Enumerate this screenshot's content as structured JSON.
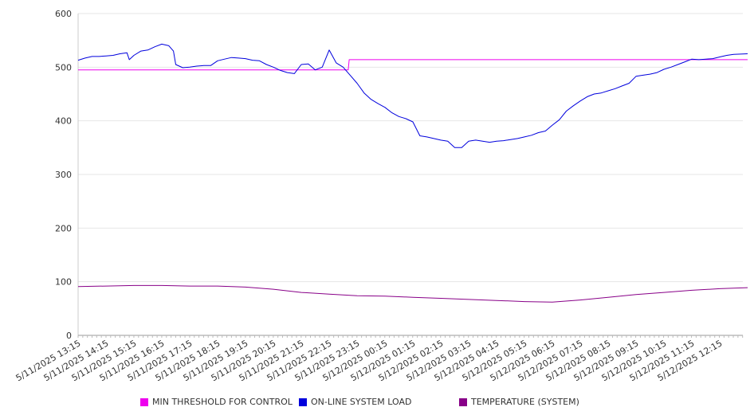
{
  "chart_data": {
    "type": "line",
    "ylim": [
      0,
      600
    ],
    "yticks": [
      0,
      100,
      200,
      300,
      400,
      500,
      600
    ],
    "grid": true,
    "legend_position": "bottom",
    "x_tick_labels": [
      "5/11/2025 13:15",
      "5/11/2025 14:15",
      "5/11/2025 15:15",
      "5/11/2025 16:15",
      "5/11/2025 17:15",
      "5/11/2025 18:15",
      "5/11/2025 19:15",
      "5/11/2025 20:15",
      "5/11/2025 21:15",
      "5/11/2025 22:15",
      "5/11/2025 23:15",
      "5/12/2025 00:15",
      "5/12/2025 01:15",
      "5/12/2025 02:15",
      "5/12/2025 03:15",
      "5/12/2025 04:15",
      "5/12/2025 05:15",
      "5/12/2025 06:15",
      "5/12/2025 07:15",
      "5/12/2025 08:15",
      "5/12/2025 09:15",
      "5/12/2025 10:15",
      "5/12/2025 11:15",
      "5/12/2025 12:15"
    ],
    "series": [
      {
        "name": "MIN THRESHOLD FOR CONTROL",
        "color": "#ee00ee",
        "points": [
          [
            "5/11/2025 13:15",
            495
          ],
          [
            "5/11/2025 22:56",
            495
          ],
          [
            "5/11/2025 22:58",
            514
          ],
          [
            "5/12/2025 13:15",
            514
          ]
        ]
      },
      {
        "name": "ON-LINE SYSTEM LOAD",
        "color": "#0000dd",
        "points": [
          [
            "5/11/2025 13:15",
            513
          ],
          [
            "5/11/2025 13:30",
            517
          ],
          [
            "5/11/2025 13:45",
            520
          ],
          [
            "5/11/2025 14:00",
            520
          ],
          [
            "5/11/2025 14:15",
            521
          ],
          [
            "5/11/2025 14:30",
            522
          ],
          [
            "5/11/2025 14:45",
            525
          ],
          [
            "5/11/2025 15:00",
            527
          ],
          [
            "5/11/2025 15:05",
            514
          ],
          [
            "5/11/2025 15:15",
            522
          ],
          [
            "5/11/2025 15:30",
            530
          ],
          [
            "5/11/2025 15:45",
            532
          ],
          [
            "5/11/2025 16:00",
            538
          ],
          [
            "5/11/2025 16:15",
            543
          ],
          [
            "5/11/2025 16:30",
            540
          ],
          [
            "5/11/2025 16:40",
            530
          ],
          [
            "5/11/2025 16:45",
            505
          ],
          [
            "5/11/2025 17:00",
            499
          ],
          [
            "5/11/2025 17:15",
            500
          ],
          [
            "5/11/2025 17:30",
            502
          ],
          [
            "5/11/2025 17:45",
            503
          ],
          [
            "5/11/2025 18:00",
            503
          ],
          [
            "5/11/2025 18:15",
            512
          ],
          [
            "5/11/2025 18:30",
            515
          ],
          [
            "5/11/2025 18:45",
            518
          ],
          [
            "5/11/2025 19:00",
            517
          ],
          [
            "5/11/2025 19:15",
            516
          ],
          [
            "5/11/2025 19:30",
            513
          ],
          [
            "5/11/2025 19:45",
            512
          ],
          [
            "5/11/2025 20:00",
            505
          ],
          [
            "5/11/2025 20:15",
            500
          ],
          [
            "5/11/2025 20:30",
            494
          ],
          [
            "5/11/2025 20:45",
            490
          ],
          [
            "5/11/2025 21:00",
            488
          ],
          [
            "5/11/2025 21:15",
            505
          ],
          [
            "5/11/2025 21:30",
            506
          ],
          [
            "5/11/2025 21:45",
            495
          ],
          [
            "5/11/2025 22:00",
            500
          ],
          [
            "5/11/2025 22:15",
            532
          ],
          [
            "5/11/2025 22:30",
            508
          ],
          [
            "5/11/2025 22:45",
            500
          ],
          [
            "5/11/2025 23:00",
            485
          ],
          [
            "5/11/2025 23:15",
            470
          ],
          [
            "5/11/2025 23:30",
            452
          ],
          [
            "5/11/2025 23:45",
            440
          ],
          [
            "5/12/2025 00:00",
            432
          ],
          [
            "5/12/2025 00:15",
            425
          ],
          [
            "5/12/2025 00:30",
            415
          ],
          [
            "5/12/2025 00:45",
            408
          ],
          [
            "5/12/2025 01:00",
            404
          ],
          [
            "5/12/2025 01:15",
            398
          ],
          [
            "5/12/2025 01:30",
            372
          ],
          [
            "5/12/2025 01:45",
            370
          ],
          [
            "5/12/2025 02:00",
            367
          ],
          [
            "5/12/2025 02:15",
            364
          ],
          [
            "5/12/2025 02:30",
            362
          ],
          [
            "5/12/2025 02:45",
            350
          ],
          [
            "5/12/2025 03:00",
            350
          ],
          [
            "5/12/2025 03:15",
            362
          ],
          [
            "5/12/2025 03:30",
            364
          ],
          [
            "5/12/2025 03:45",
            362
          ],
          [
            "5/12/2025 04:00",
            360
          ],
          [
            "5/12/2025 04:15",
            362
          ],
          [
            "5/12/2025 04:30",
            363
          ],
          [
            "5/12/2025 04:45",
            365
          ],
          [
            "5/12/2025 05:00",
            367
          ],
          [
            "5/12/2025 05:15",
            370
          ],
          [
            "5/12/2025 05:30",
            373
          ],
          [
            "5/12/2025 05:45",
            378
          ],
          [
            "5/12/2025 06:00",
            381
          ],
          [
            "5/12/2025 06:15",
            392
          ],
          [
            "5/12/2025 06:30",
            402
          ],
          [
            "5/12/2025 06:45",
            418
          ],
          [
            "5/12/2025 07:00",
            428
          ],
          [
            "5/12/2025 07:15",
            437
          ],
          [
            "5/12/2025 07:30",
            445
          ],
          [
            "5/12/2025 07:45",
            450
          ],
          [
            "5/12/2025 08:00",
            452
          ],
          [
            "5/12/2025 08:15",
            456
          ],
          [
            "5/12/2025 08:30",
            460
          ],
          [
            "5/12/2025 08:45",
            465
          ],
          [
            "5/12/2025 09:00",
            470
          ],
          [
            "5/12/2025 09:15",
            483
          ],
          [
            "5/12/2025 09:30",
            485
          ],
          [
            "5/12/2025 09:45",
            487
          ],
          [
            "5/12/2025 10:00",
            490
          ],
          [
            "5/12/2025 10:15",
            496
          ],
          [
            "5/12/2025 10:30",
            500
          ],
          [
            "5/12/2025 10:45",
            505
          ],
          [
            "5/12/2025 11:00",
            510
          ],
          [
            "5/12/2025 11:15",
            515
          ],
          [
            "5/12/2025 11:30",
            514
          ],
          [
            "5/12/2025 11:45",
            515
          ],
          [
            "5/12/2025 12:00",
            516
          ],
          [
            "5/12/2025 12:15",
            519
          ],
          [
            "5/12/2025 12:30",
            522
          ],
          [
            "5/12/2025 12:45",
            524
          ],
          [
            "5/12/2025 13:15",
            525
          ]
        ]
      },
      {
        "name": "TEMPERATURE (SYSTEM)",
        "color": "#880088",
        "points": [
          [
            "5/11/2025 13:15",
            91
          ],
          [
            "5/11/2025 14:15",
            92
          ],
          [
            "5/11/2025 15:15",
            93
          ],
          [
            "5/11/2025 16:15",
            93
          ],
          [
            "5/11/2025 17:15",
            92
          ],
          [
            "5/11/2025 18:15",
            92
          ],
          [
            "5/11/2025 19:15",
            90
          ],
          [
            "5/11/2025 20:15",
            86
          ],
          [
            "5/11/2025 21:15",
            80
          ],
          [
            "5/11/2025 22:15",
            77
          ],
          [
            "5/11/2025 23:15",
            74
          ],
          [
            "5/12/2025 00:15",
            73
          ],
          [
            "5/12/2025 01:15",
            71
          ],
          [
            "5/12/2025 02:15",
            69
          ],
          [
            "5/12/2025 03:15",
            67
          ],
          [
            "5/12/2025 04:15",
            65
          ],
          [
            "5/12/2025 05:15",
            63
          ],
          [
            "5/12/2025 06:15",
            62
          ],
          [
            "5/12/2025 07:15",
            66
          ],
          [
            "5/12/2025 08:15",
            71
          ],
          [
            "5/12/2025 09:15",
            76
          ],
          [
            "5/12/2025 10:15",
            80
          ],
          [
            "5/12/2025 11:15",
            84
          ],
          [
            "5/12/2025 12:15",
            87
          ],
          [
            "5/12/2025 13:15",
            89
          ]
        ]
      }
    ]
  }
}
